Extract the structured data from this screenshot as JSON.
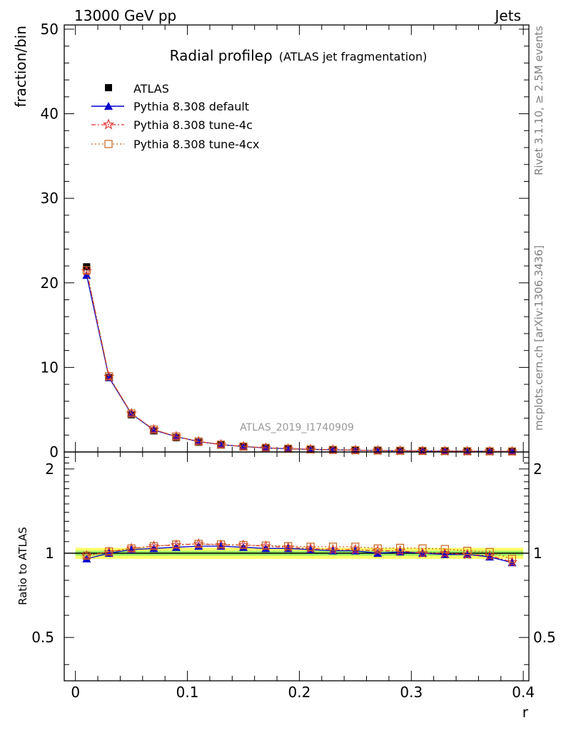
{
  "header": {
    "left": "13000 GeV pp",
    "right": "Jets"
  },
  "side_labels": {
    "version": "Rivet 3.1.10, ≥ 2.5M events",
    "source": "mcplots.cern.ch [arXiv:1306.3436]"
  },
  "watermark": "ATLAS_2019_I1740909",
  "chart_data": [
    {
      "type": "line",
      "title_main": "Radial profileρ",
      "title_sub": "(ATLAS jet fragmentation)",
      "ylabel": "fraction/bin",
      "xlabel": "",
      "xlim": [
        -0.01,
        0.405
      ],
      "ylim": [
        0,
        50.5
      ],
      "yticks": [
        0,
        10,
        20,
        30,
        40,
        50
      ],
      "ytick_labels": [
        "0",
        "10",
        "20",
        "30",
        "40",
        "50"
      ],
      "legend_position": "top-left",
      "x": [
        0.01,
        0.03,
        0.05,
        0.07,
        0.09,
        0.11,
        0.13,
        0.15,
        0.17,
        0.19,
        0.21,
        0.23,
        0.25,
        0.27,
        0.29,
        0.31,
        0.33,
        0.35,
        0.37,
        0.39
      ],
      "series": [
        {
          "name": "ATLAS",
          "marker": "square",
          "color": "#000000",
          "values": [
            21.9,
            8.8,
            4.4,
            2.5,
            1.7,
            1.15,
            0.82,
            0.6,
            0.46,
            0.36,
            0.29,
            0.24,
            0.2,
            0.17,
            0.14,
            0.12,
            0.1,
            0.09,
            0.08,
            0.07
          ]
        },
        {
          "name": "Pythia 8.308 default",
          "marker": "triangle",
          "color": "#0000cc",
          "dash": "",
          "values": [
            20.9,
            8.8,
            4.5,
            2.6,
            1.8,
            1.23,
            0.87,
            0.64,
            0.48,
            0.38,
            0.31,
            0.25,
            0.21,
            0.17,
            0.14,
            0.12,
            0.1,
            0.09,
            0.08,
            0.06
          ]
        },
        {
          "name": "Pythia 8.308 tune-4c",
          "marker": "star",
          "color": "#e03030",
          "dash": "6,3,2,3",
          "values": [
            21.4,
            8.9,
            4.55,
            2.65,
            1.83,
            1.25,
            0.88,
            0.65,
            0.49,
            0.39,
            0.31,
            0.25,
            0.21,
            0.17,
            0.14,
            0.12,
            0.1,
            0.09,
            0.08,
            0.06
          ]
        },
        {
          "name": "Pythia 8.308 tune-4cx",
          "marker": "open-square",
          "color": "#c8641e",
          "dash": "2,3",
          "values": [
            21.5,
            8.95,
            4.55,
            2.65,
            1.83,
            1.25,
            0.88,
            0.65,
            0.49,
            0.39,
            0.31,
            0.25,
            0.21,
            0.18,
            0.15,
            0.13,
            0.11,
            0.09,
            0.08,
            0.07
          ]
        }
      ]
    },
    {
      "type": "line",
      "ylabel": "Ratio to ATLAS",
      "xlabel": "r",
      "xlim": [
        -0.01,
        0.405
      ],
      "ylim": [
        0.35,
        2.3
      ],
      "log_y": true,
      "yticks": [
        0.5,
        1,
        2
      ],
      "ytick_labels": [
        "0.5",
        "1",
        "2"
      ],
      "xticks": [
        0,
        0.1,
        0.2,
        0.3,
        0.4
      ],
      "xtick_labels": [
        "0",
        "0.1",
        "0.2",
        "0.3",
        "0.4"
      ],
      "x": [
        0.01,
        0.03,
        0.05,
        0.07,
        0.09,
        0.11,
        0.13,
        0.15,
        0.17,
        0.19,
        0.21,
        0.23,
        0.25,
        0.27,
        0.29,
        0.31,
        0.33,
        0.35,
        0.37,
        0.39
      ],
      "bands": [
        {
          "name": "total",
          "color": "#ffff66",
          "lower": 0.955,
          "upper": 1.045
        },
        {
          "name": "stat",
          "color": "#99ee66",
          "lower": 0.98,
          "upper": 1.02
        }
      ],
      "series": [
        {
          "name": "Pythia 8.308 default",
          "marker": "triangle",
          "color": "#0000cc",
          "dash": "",
          "values": [
            0.955,
            1.0,
            1.03,
            1.04,
            1.05,
            1.06,
            1.06,
            1.05,
            1.04,
            1.04,
            1.03,
            1.02,
            1.02,
            1.0,
            1.01,
            1.0,
            0.99,
            0.99,
            0.97,
            0.925
          ]
        },
        {
          "name": "Pythia 8.308 tune-4c",
          "marker": "star",
          "color": "#e03030",
          "dash": "6,3,2,3",
          "values": [
            0.98,
            1.01,
            1.04,
            1.06,
            1.07,
            1.08,
            1.07,
            1.07,
            1.06,
            1.05,
            1.04,
            1.03,
            1.03,
            1.02,
            1.02,
            1.0,
            1.0,
            0.99,
            0.98,
            0.93
          ]
        },
        {
          "name": "Pythia 8.308 tune-4cx",
          "marker": "open-square",
          "color": "#c8641e",
          "dash": "2,3",
          "values": [
            0.98,
            1.015,
            1.04,
            1.06,
            1.075,
            1.08,
            1.075,
            1.07,
            1.065,
            1.06,
            1.055,
            1.055,
            1.055,
            1.04,
            1.045,
            1.04,
            1.035,
            1.02,
            1.01,
            0.955
          ]
        }
      ]
    }
  ]
}
